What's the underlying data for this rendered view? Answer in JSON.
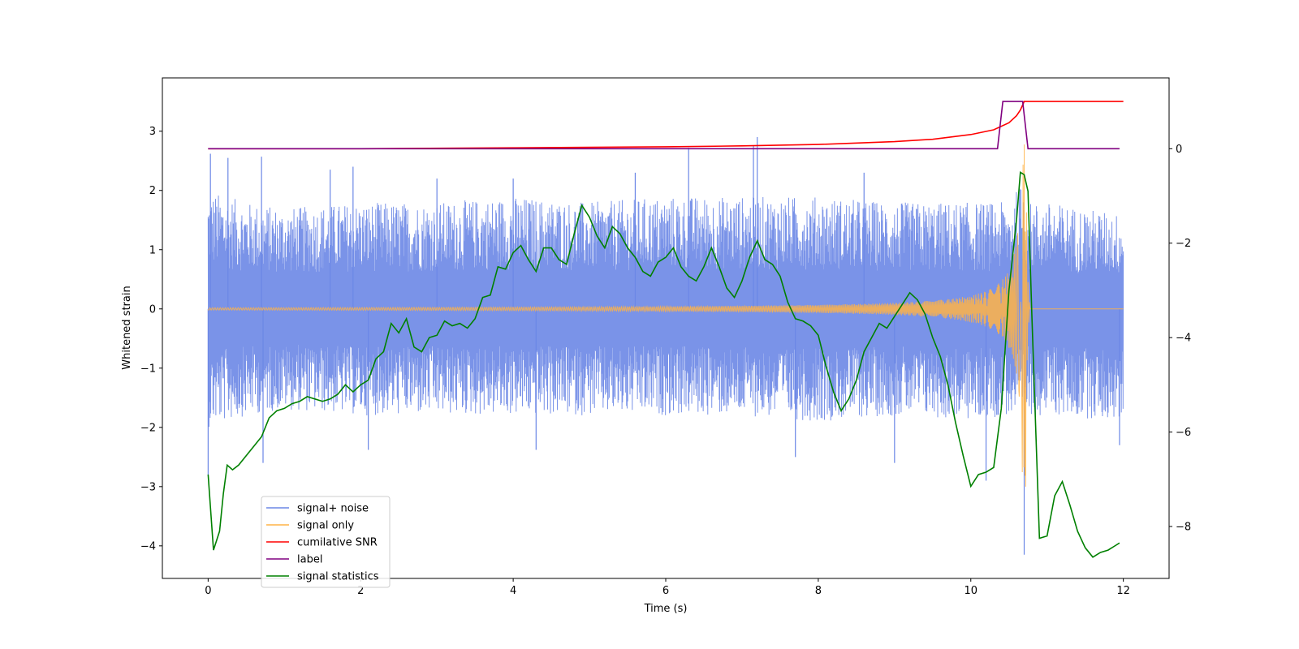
{
  "chart_data": {
    "type": "line",
    "title": "",
    "xlabel": "Time (s)",
    "ylabel": "Whitened strain",
    "ylabel_right": "",
    "xlim": [
      -0.6,
      12.6
    ],
    "ylim": [
      -4.55,
      3.9
    ],
    "ylim_right": [
      -9.1,
      1.5
    ],
    "x_ticks": [
      0,
      2,
      4,
      6,
      8,
      10,
      12
    ],
    "y_ticks": [
      -4,
      -3,
      -2,
      -1,
      0,
      1,
      2,
      3
    ],
    "y_ticks_right": [
      -8,
      -6,
      -4,
      -2,
      0
    ],
    "grid": false,
    "legend_position": "lower-left",
    "colors": {
      "signal_noise": "#6b87e6",
      "signal_only": "#ffb347",
      "cumulative_snr": "#ff0000",
      "label": "#800080",
      "signal_statistics": "#008000"
    },
    "series": [
      {
        "name": "signal+ noise",
        "axis": "left",
        "description_level": "band",
        "envelope": {
          "t": [
            0,
            0.5,
            1,
            2,
            3,
            4,
            5,
            6,
            7,
            8,
            9,
            10,
            10.5,
            10.7,
            10.75,
            11,
            12
          ],
          "upper": [
            2.0,
            1.8,
            1.7,
            1.8,
            1.8,
            1.9,
            1.8,
            1.9,
            1.9,
            1.9,
            1.8,
            1.8,
            1.8,
            2.2,
            1.8,
            1.8,
            1.6
          ],
          "lower": [
            -2.0,
            -1.8,
            -1.7,
            -1.8,
            -1.8,
            -1.8,
            -1.8,
            -1.8,
            -1.8,
            -1.9,
            -1.8,
            -1.9,
            -1.8,
            -2.0,
            -1.8,
            -1.8,
            -1.9
          ]
        },
        "spikes": [
          {
            "t": 0.03,
            "v": 2.62
          },
          {
            "t": 0.0,
            "v": -2.8
          },
          {
            "t": 0.26,
            "v": 2.55
          },
          {
            "t": 0.7,
            "v": 2.57
          },
          {
            "t": 0.72,
            "v": -2.6
          },
          {
            "t": 1.6,
            "v": 2.35
          },
          {
            "t": 1.9,
            "v": 2.4
          },
          {
            "t": 2.1,
            "v": -2.38
          },
          {
            "t": 3.0,
            "v": 2.2
          },
          {
            "t": 4.0,
            "v": 2.2
          },
          {
            "t": 4.3,
            "v": -2.38
          },
          {
            "t": 5.6,
            "v": 2.3
          },
          {
            "t": 6.3,
            "v": 2.72
          },
          {
            "t": 7.2,
            "v": 2.9
          },
          {
            "t": 7.15,
            "v": 2.75
          },
          {
            "t": 7.7,
            "v": -2.5
          },
          {
            "t": 8.6,
            "v": 2.3
          },
          {
            "t": 9.0,
            "v": -2.6
          },
          {
            "t": 10.2,
            "v": -2.9
          },
          {
            "t": 10.7,
            "v": -4.15
          },
          {
            "t": 11.95,
            "v": -2.3
          }
        ]
      },
      {
        "name": "signal only",
        "axis": "left",
        "chirp": {
          "t_merge": 10.72,
          "amplitude_peak": 3.0,
          "amplitude_base": 0.02
        }
      },
      {
        "name": "cumilative SNR",
        "axis": "right",
        "x": [
          0,
          2,
          4,
          6,
          7,
          8,
          9,
          9.5,
          10,
          10.3,
          10.5,
          10.6,
          10.65,
          10.7,
          10.72,
          10.73,
          12
        ],
        "values": [
          0.0,
          0.0,
          0.02,
          0.04,
          0.06,
          0.09,
          0.15,
          0.2,
          0.3,
          0.4,
          0.55,
          0.7,
          0.82,
          1.0,
          1.0,
          1.0,
          1.0
        ]
      },
      {
        "name": "label",
        "axis": "right",
        "x": [
          0,
          10.35,
          10.42,
          10.68,
          10.75,
          11.95
        ],
        "values": [
          0,
          0,
          1,
          1,
          0,
          0
        ]
      },
      {
        "name": "signal statistics",
        "axis": "right",
        "x": [
          0,
          0.07,
          0.15,
          0.2,
          0.25,
          0.32,
          0.4,
          0.5,
          0.6,
          0.7,
          0.8,
          0.9,
          1.0,
          1.1,
          1.2,
          1.3,
          1.4,
          1.5,
          1.6,
          1.7,
          1.8,
          1.9,
          2.0,
          2.1,
          2.2,
          2.3,
          2.4,
          2.5,
          2.6,
          2.7,
          2.8,
          2.9,
          3.0,
          3.1,
          3.2,
          3.3,
          3.4,
          3.5,
          3.6,
          3.7,
          3.8,
          3.9,
          4.0,
          4.1,
          4.2,
          4.3,
          4.4,
          4.5,
          4.6,
          4.7,
          4.8,
          4.9,
          5.0,
          5.1,
          5.2,
          5.3,
          5.4,
          5.5,
          5.6,
          5.7,
          5.8,
          5.9,
          6.0,
          6.1,
          6.2,
          6.3,
          6.4,
          6.5,
          6.6,
          6.7,
          6.8,
          6.9,
          7.0,
          7.1,
          7.2,
          7.3,
          7.4,
          7.5,
          7.6,
          7.7,
          7.8,
          7.9,
          8.0,
          8.1,
          8.2,
          8.3,
          8.4,
          8.5,
          8.6,
          8.7,
          8.8,
          8.9,
          9.0,
          9.1,
          9.2,
          9.3,
          9.4,
          9.5,
          9.6,
          9.7,
          9.8,
          9.9,
          10.0,
          10.1,
          10.2,
          10.3,
          10.4,
          10.5,
          10.6,
          10.65,
          10.7,
          10.75,
          10.8,
          10.9,
          11.0,
          11.1,
          11.2,
          11.3,
          11.4,
          11.5,
          11.6,
          11.7,
          11.8,
          11.9,
          11.95
        ],
        "values": [
          -6.9,
          -8.5,
          -8.1,
          -7.3,
          -6.7,
          -6.8,
          -6.7,
          -6.5,
          -6.3,
          -6.1,
          -5.7,
          -5.55,
          -5.5,
          -5.4,
          -5.35,
          -5.25,
          -5.3,
          -5.35,
          -5.3,
          -5.2,
          -5.0,
          -5.15,
          -5.0,
          -4.9,
          -4.45,
          -4.3,
          -3.7,
          -3.9,
          -3.6,
          -4.2,
          -4.3,
          -4.0,
          -3.95,
          -3.65,
          -3.75,
          -3.7,
          -3.8,
          -3.6,
          -3.15,
          -3.1,
          -2.5,
          -2.55,
          -2.2,
          -2.05,
          -2.35,
          -2.6,
          -2.1,
          -2.1,
          -2.35,
          -2.45,
          -1.8,
          -1.2,
          -1.45,
          -1.85,
          -2.1,
          -1.65,
          -1.8,
          -2.1,
          -2.3,
          -2.6,
          -2.7,
          -2.4,
          -2.3,
          -2.1,
          -2.5,
          -2.7,
          -2.8,
          -2.5,
          -2.1,
          -2.5,
          -2.95,
          -3.15,
          -2.8,
          -2.3,
          -1.95,
          -2.35,
          -2.45,
          -2.7,
          -3.25,
          -3.6,
          -3.65,
          -3.75,
          -3.95,
          -4.6,
          -5.15,
          -5.55,
          -5.3,
          -4.9,
          -4.3,
          -4.0,
          -3.7,
          -3.8,
          -3.55,
          -3.3,
          -3.05,
          -3.2,
          -3.5,
          -4.0,
          -4.4,
          -5.0,
          -5.8,
          -6.5,
          -7.15,
          -6.9,
          -6.85,
          -6.75,
          -5.5,
          -3.0,
          -1.5,
          -0.5,
          -0.55,
          -0.9,
          -3.5,
          -8.25,
          -8.2,
          -7.35,
          -7.05,
          -7.55,
          -8.1,
          -8.45,
          -8.65,
          -8.55,
          -8.5,
          -8.4,
          -8.35
        ]
      }
    ]
  }
}
